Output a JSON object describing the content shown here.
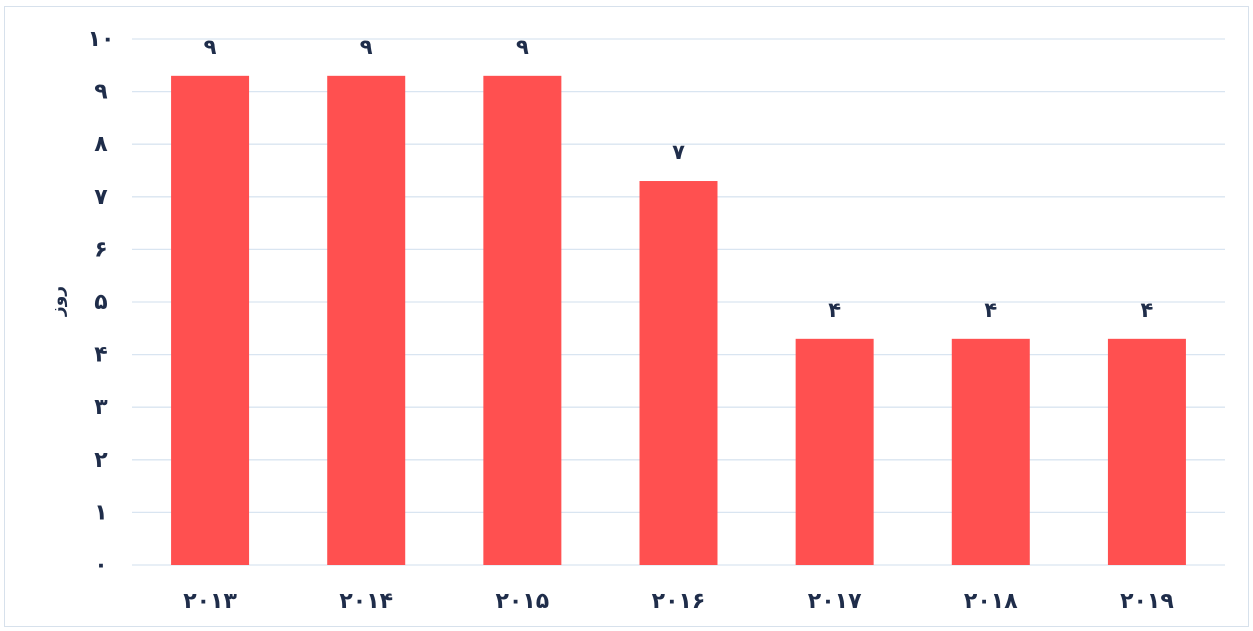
{
  "chart_data": {
    "type": "bar",
    "categories": [
      "۲۰۱۳",
      "۲۰۱۴",
      "۲۰۱۵",
      "۲۰۱۶",
      "۲۰۱۷",
      "۲۰۱۸",
      "۲۰۱۹"
    ],
    "values": [
      9,
      9,
      9,
      7,
      4,
      4,
      4
    ],
    "value_labels": [
      "۹",
      "۹",
      "۹",
      "۷",
      "۴",
      "۴",
      "۴"
    ],
    "title": "",
    "xlabel": "",
    "ylabel": "روز",
    "ylim": [
      0,
      10
    ],
    "yticks": [
      0,
      1,
      2,
      3,
      4,
      5,
      6,
      7,
      8,
      9,
      10
    ],
    "ytick_labels": [
      "۰",
      "۱",
      "۲",
      "۳",
      "۴",
      "۵",
      "۶",
      "۷",
      "۸",
      "۹",
      "۱۰"
    ],
    "grid": true,
    "legend": "none",
    "bar_color": "#ff5050",
    "grid_color": "#d9e5f1",
    "text_color": "#1f2d4a"
  }
}
